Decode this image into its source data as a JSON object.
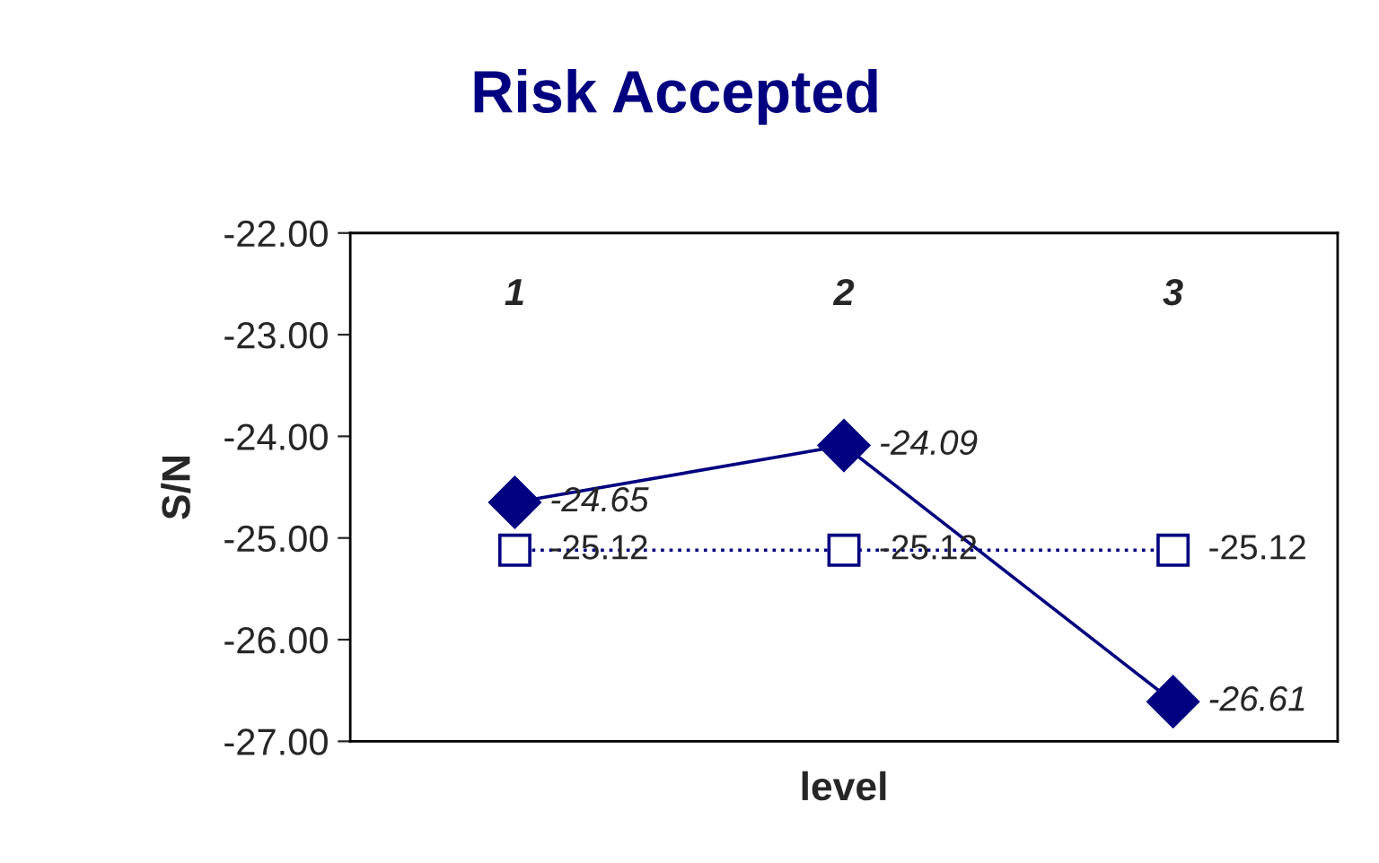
{
  "chart_data": {
    "type": "line",
    "title": "Risk Accepted",
    "xlabel": "level",
    "ylabel": "S/N",
    "categories": [
      "1",
      "2",
      "3"
    ],
    "series": [
      {
        "color": "#000080",
        "values": [
          -24.65,
          -24.09,
          -26.61
        ],
        "marker": "diamond",
        "line_style": "solid"
      },
      {
        "color": "#000080",
        "values": [
          -25.12,
          -25.12,
          -25.12
        ],
        "marker": "square",
        "line_style": "dotted"
      }
    ],
    "ylim": [
      -27,
      -22
    ],
    "yticks": [
      {
        "value": -27,
        "label": "-27.00"
      },
      {
        "value": -26,
        "label": "-26.00"
      },
      {
        "value": -25,
        "label": "-25.00"
      },
      {
        "value": -24,
        "label": "-24.00"
      },
      {
        "value": -23,
        "label": "-23.00"
      },
      {
        "value": -22,
        "label": "-22.00"
      }
    ],
    "data_labels": true,
    "grid": false,
    "legend": false
  }
}
